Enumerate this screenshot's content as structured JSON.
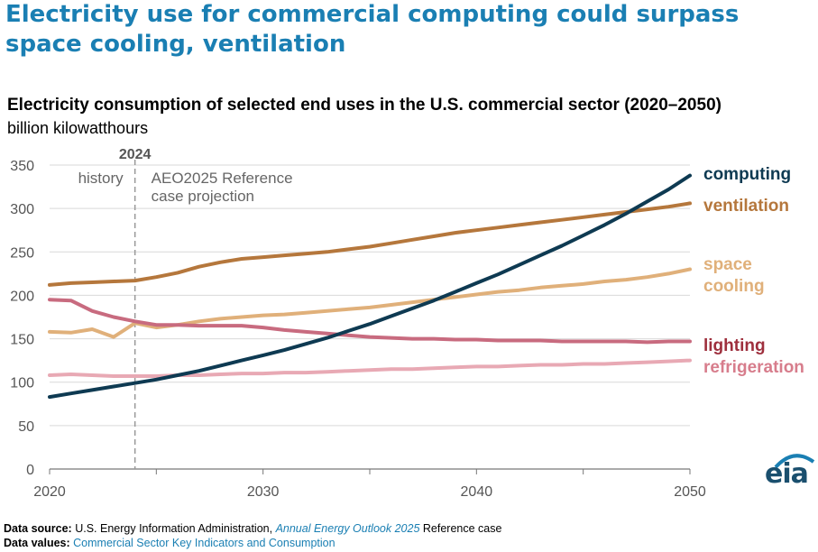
{
  "headline": "Electricity use for commercial computing could surpass space cooling, ventilation",
  "chart_data": {
    "type": "line",
    "title": "Electricity consumption of selected end uses in the U.S. commercial sector (2020–2050)",
    "unit": "billion kilowatthours",
    "xlim": [
      2020,
      2050
    ],
    "ylim": [
      0,
      350
    ],
    "x_ticks": [
      2020,
      2030,
      2040,
      2050
    ],
    "y_ticks": [
      0,
      50,
      100,
      150,
      200,
      250,
      300,
      350
    ],
    "grid": true,
    "annotations": {
      "divider_year": 2024,
      "divider_label": "2024",
      "history_label": "history",
      "projection_label_line1": "AEO2025 Reference",
      "projection_label_line2": "case projection"
    },
    "x": [
      2020,
      2021,
      2022,
      2023,
      2024,
      2025,
      2026,
      2027,
      2028,
      2029,
      2030,
      2031,
      2032,
      2033,
      2034,
      2035,
      2036,
      2037,
      2038,
      2039,
      2040,
      2041,
      2042,
      2043,
      2044,
      2045,
      2046,
      2047,
      2048,
      2049,
      2050
    ],
    "series": [
      {
        "name": "computing",
        "label_line1": "computing",
        "label_line2": "",
        "color": "#0e3a52",
        "values": [
          83,
          87,
          91,
          95,
          99,
          103,
          108,
          113,
          119,
          125,
          131,
          137,
          144,
          151,
          159,
          167,
          176,
          185,
          194,
          204,
          214,
          224,
          235,
          246,
          257,
          269,
          281,
          294,
          308,
          322,
          338
        ]
      },
      {
        "name": "ventilation",
        "label_line1": "ventilation",
        "label_line2": "",
        "color": "#b5773c",
        "values": [
          212,
          214,
          215,
          216,
          217,
          221,
          226,
          233,
          238,
          242,
          244,
          246,
          248,
          250,
          253,
          256,
          260,
          264,
          268,
          272,
          275,
          278,
          281,
          284,
          287,
          290,
          293,
          296,
          299,
          302,
          306
        ]
      },
      {
        "name": "space cooling",
        "label_line1": "space",
        "label_line2": "cooling",
        "color": "#e0b07a",
        "values": [
          158,
          157,
          161,
          152,
          168,
          163,
          166,
          170,
          173,
          175,
          177,
          178,
          180,
          182,
          184,
          186,
          189,
          192,
          195,
          198,
          201,
          204,
          206,
          209,
          211,
          213,
          216,
          218,
          221,
          225,
          230
        ]
      },
      {
        "name": "lighting",
        "label_line1": "lighting",
        "label_line2": "",
        "color": "#c86b7f",
        "text_color": "#9e2f3d",
        "values": [
          195,
          194,
          182,
          175,
          170,
          166,
          166,
          165,
          165,
          165,
          163,
          160,
          158,
          156,
          154,
          152,
          151,
          150,
          150,
          149,
          149,
          148,
          148,
          148,
          147,
          147,
          147,
          147,
          146,
          147,
          147
        ]
      },
      {
        "name": "refrigeration",
        "label_line1": "refrigeration",
        "label_line2": "",
        "color": "#e8a9b4",
        "text_color": "#d77d8c",
        "values": [
          108,
          109,
          108,
          107,
          107,
          107,
          108,
          108,
          109,
          110,
          110,
          111,
          111,
          112,
          113,
          114,
          115,
          115,
          116,
          117,
          118,
          118,
          119,
          120,
          120,
          121,
          121,
          122,
          123,
          124,
          125
        ]
      }
    ]
  },
  "footer": {
    "source_label": "Data source:",
    "source_text": "U.S. Energy Information Administration,",
    "source_pub": "Annual Energy Outlook 2025",
    "source_tail": "Reference case",
    "values_label": "Data values:",
    "values_link": "Commercial Sector Key Indicators and Consumption"
  },
  "logo_text": "eia"
}
